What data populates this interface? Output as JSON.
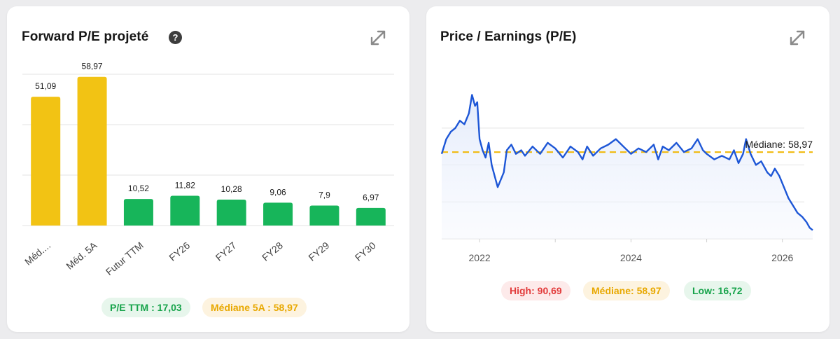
{
  "left_card": {
    "title": "Forward P/E projeté",
    "help_icon": "help-circle-icon",
    "expand_icon": "expand-icon",
    "pills": {
      "pe_ttm": "P/E TTM : 17,03",
      "median_5a": "Médiane 5A : 58,97"
    }
  },
  "right_card": {
    "title": "Price / Earnings (P/E)",
    "expand_icon": "expand-icon",
    "median_label": "Médiane: 58,97",
    "pills": {
      "high": "High: 90,69",
      "median": "Médiane: 58,97",
      "low": "Low: 16,72"
    }
  },
  "colors": {
    "yellow": "#f2c314",
    "green": "#17b55a",
    "line_blue": "#1d56d6",
    "median_dash": "#f0b90b"
  },
  "chart_data": [
    {
      "type": "bar",
      "categories": [
        "Méd....",
        "Méd. 5A",
        "Futur TTM",
        "FY26",
        "FY27",
        "FY28",
        "FY29",
        "FY30"
      ],
      "values": [
        51.09,
        58.97,
        10.52,
        11.82,
        10.28,
        9.06,
        7.9,
        6.97
      ],
      "value_labels": [
        "51,09",
        "58,97",
        "10,52",
        "11,82",
        "10,28",
        "9,06",
        "7,9",
        "6,97"
      ],
      "bar_colors": [
        "yellow",
        "yellow",
        "green",
        "green",
        "green",
        "green",
        "green",
        "green"
      ],
      "ylim": [
        0,
        60
      ],
      "grid": true
    },
    {
      "type": "line",
      "x_ticks": [
        "2022",
        "2024",
        "2026"
      ],
      "x_range": [
        2021.5,
        2026.4
      ],
      "ylim": [
        12,
        100
      ],
      "median": 58.97,
      "grid": true,
      "series": [
        {
          "x": [
            2021.5,
            2021.56,
            2021.62,
            2021.68,
            2021.74,
            2021.8,
            2021.86,
            2021.9,
            2021.94,
            2021.97,
            2022.0,
            2022.04,
            2022.08,
            2022.12,
            2022.16,
            2022.2,
            2022.24,
            2022.28,
            2022.32,
            2022.36,
            2022.42,
            2022.48,
            2022.55,
            2022.6,
            2022.7,
            2022.8,
            2022.9,
            2023.0,
            2023.1,
            2023.2,
            2023.3,
            2023.36,
            2023.42,
            2023.5,
            2023.6,
            2023.7,
            2023.8,
            2023.9,
            2024.0,
            2024.1,
            2024.2,
            2024.3,
            2024.36,
            2024.42,
            2024.5,
            2024.6,
            2024.7,
            2024.8,
            2024.88,
            2024.95,
            2025.0,
            2025.1,
            2025.2,
            2025.3,
            2025.36,
            2025.42,
            2025.48,
            2025.52,
            2025.58,
            2025.65,
            2025.72,
            2025.8,
            2025.85,
            2025.9,
            2025.96,
            2026.02,
            2026.08,
            2026.14,
            2026.2,
            2026.26,
            2026.32,
            2026.36,
            2026.4
          ],
          "values": [
            58,
            66,
            70,
            72,
            76,
            74,
            80,
            90,
            84,
            86,
            66,
            60,
            56,
            64,
            52,
            46,
            40,
            44,
            48,
            60,
            63,
            58,
            60,
            57,
            62,
            58,
            64,
            61,
            56,
            62,
            59,
            55,
            62,
            57,
            61,
            63,
            66,
            62,
            58,
            61,
            59,
            63,
            55,
            62,
            60,
            64,
            59,
            61,
            66,
            60,
            58,
            55,
            57,
            55,
            60,
            53,
            58,
            66,
            58,
            52,
            54,
            48,
            46,
            50,
            46,
            40,
            34,
            30,
            26,
            24,
            21,
            18,
            16.72
          ]
        }
      ]
    }
  ]
}
